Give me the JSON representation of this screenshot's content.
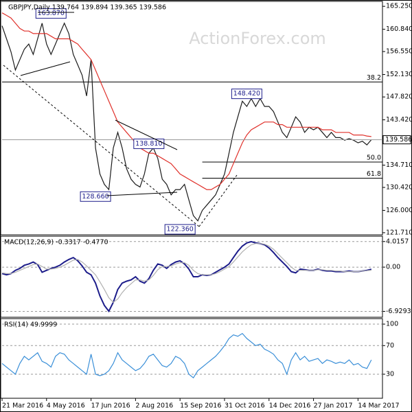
{
  "watermark": "ActionForex.com",
  "chart_data": [
    {
      "type": "line",
      "title": "GBPJPY,Daily  139.764 139.894 139.365 139.586",
      "xlim": [
        0,
        85.5
      ],
      "xticks": [
        {
          "value": 0,
          "label": "21 Mar 2016"
        },
        {
          "value": 10,
          "label": "4 May 2016"
        },
        {
          "value": 20,
          "label": "17 Jun 2016"
        },
        {
          "value": 30,
          "label": "2 Aug 2016"
        },
        {
          "value": 40,
          "label": "15 Sep 2016"
        },
        {
          "value": 50,
          "label": "31 Oct 2016"
        },
        {
          "value": 60,
          "label": "14 Dec 2016"
        },
        {
          "value": 70,
          "label": "27 Jan 2017"
        },
        {
          "value": 80,
          "label": "14 Mar 2017"
        }
      ],
      "ylim": [
        121.3,
        166.2
      ],
      "yticks": [
        {
          "value": 121.71,
          "label": "121.710"
        },
        {
          "value": 126,
          "label": "126.000"
        },
        {
          "value": 130.42,
          "label": "130.420"
        },
        {
          "value": 134.71,
          "label": "134.710"
        },
        {
          "value": 143.42,
          "label": "143.420"
        },
        {
          "value": 147.82,
          "label": "147.820"
        },
        {
          "value": 152.13,
          "label": "152.130"
        },
        {
          "value": 156.55,
          "label": "156.550"
        },
        {
          "value": 160.84,
          "label": "160.840"
        },
        {
          "value": 165.25,
          "label": "165.250"
        }
      ],
      "series": [
        {
          "name": "GBPJPY",
          "color": "#1a1a1a",
          "values": [
            161.5,
            159,
            156.5,
            153,
            155,
            157,
            158,
            156,
            159,
            162,
            158,
            156,
            158,
            160,
            162,
            160,
            156,
            154,
            152,
            148,
            155,
            138,
            133,
            131,
            130,
            138,
            141,
            138,
            134,
            132,
            131,
            130.5,
            133,
            137,
            138,
            136,
            132,
            131,
            129,
            130,
            130,
            131,
            128,
            125,
            124,
            126,
            127,
            128,
            129,
            131,
            133,
            137,
            141,
            144,
            147,
            146,
            147.5,
            146,
            147.5,
            146,
            146,
            145,
            143,
            141,
            140,
            142,
            144,
            143,
            141,
            142,
            141.5,
            142,
            141,
            140,
            141,
            140,
            140,
            139.5,
            139.8,
            139.5,
            139,
            139.3,
            138.6,
            139.586
          ]
        },
        {
          "name": "MA",
          "color": "#e0302a",
          "values": [
            164,
            163.5,
            163,
            162,
            161,
            160.5,
            160.5,
            160,
            160,
            160,
            160,
            159.5,
            159,
            159,
            159,
            159,
            158.5,
            158,
            157,
            156,
            155,
            153,
            151,
            149,
            147,
            145,
            143,
            142,
            141,
            140,
            139,
            138,
            137.5,
            137,
            137,
            136.5,
            136,
            135.5,
            135,
            134,
            133,
            132.5,
            132,
            131.5,
            131,
            130.5,
            130,
            130,
            130.5,
            131,
            132,
            133,
            135,
            137,
            139,
            140.5,
            141.5,
            142,
            142.5,
            143,
            143,
            143,
            142.5,
            142.5,
            142,
            142,
            142,
            142,
            142,
            142,
            142,
            142,
            141.5,
            141.5,
            141.5,
            141,
            141,
            141,
            141,
            140.5,
            140.5,
            140.5,
            140.3,
            140.2
          ]
        }
      ],
      "levels": [
        {
          "value": 150.7,
          "label": "38.2"
        },
        {
          "value": 135.3,
          "label": "50.0"
        },
        {
          "value": 132.2,
          "label": "61.8"
        }
      ],
      "annotations": [
        {
          "label": "163.870",
          "value": 163.87,
          "x": 11
        },
        {
          "label": "148.420",
          "value": 148.42,
          "x": 55
        },
        {
          "label": "138.810",
          "value": 138.81,
          "x": 33
        },
        {
          "label": "128.660",
          "value": 128.66,
          "x": 21
        },
        {
          "label": "122.360",
          "value": 122.36,
          "x": 40
        }
      ]
    },
    {
      "type": "line",
      "title": "MACD(12,26,9) -0.3317 -0.4770",
      "xlim": [
        0,
        85.5
      ],
      "ylim": [
        -7.85,
        4.85
      ],
      "yticks": [
        {
          "value": 4.0157,
          "label": "4.0157"
        },
        {
          "value": 0,
          "label": "0.00"
        },
        {
          "value": -6.9293,
          "label": "-6.9293"
        }
      ],
      "series": [
        {
          "name": "MACD",
          "color": "#1c1c8a",
          "values": [
            -1,
            -1.2,
            -1,
            -0.5,
            -0.2,
            0.3,
            0.5,
            0.8,
            0.4,
            -0.8,
            -0.5,
            -0.2,
            0,
            0.3,
            0.8,
            1.2,
            1.5,
            1,
            0.2,
            -0.8,
            -1.2,
            -2.5,
            -4.5,
            -6,
            -6.9,
            -5.5,
            -3.5,
            -2.5,
            -2.2,
            -2,
            -1.5,
            -2.2,
            -2.5,
            -1.8,
            -0.5,
            0.5,
            0.3,
            -0.2,
            0.4,
            0.8,
            1,
            0.5,
            -0.3,
            -1.5,
            -1.5,
            -1.2,
            -1.3,
            -1.2,
            -0.8,
            -0.4,
            0,
            0.5,
            1.5,
            2.5,
            3.3,
            3.8,
            4.0,
            3.8,
            3.7,
            3.5,
            3,
            2.3,
            1.5,
            0.8,
            0.1,
            -0.7,
            -0.9,
            -0.3,
            -0.4,
            -0.5,
            -0.5,
            -0.3,
            -0.5,
            -0.6,
            -0.6,
            -0.7,
            -0.7,
            -0.7,
            -0.6,
            -0.7,
            -0.7,
            -0.6,
            -0.5,
            -0.33
          ]
        },
        {
          "name": "Signal",
          "color": "#b0b0b0",
          "values": [
            -0.9,
            -1,
            -1,
            -0.8,
            -0.5,
            -0.2,
            0.1,
            0.4,
            0.5,
            0.1,
            -0.3,
            -0.3,
            -0.2,
            0,
            0.3,
            0.7,
            1.1,
            1.2,
            0.8,
            0.2,
            -0.5,
            -1.2,
            -2.3,
            -3.5,
            -4.8,
            -5.5,
            -5,
            -4,
            -3.2,
            -2.6,
            -2,
            -2,
            -2.2,
            -2,
            -1.3,
            -0.4,
            0.1,
            0.1,
            0.2,
            0.5,
            0.7,
            0.7,
            0.3,
            -0.5,
            -1,
            -1.2,
            -1.2,
            -1.2,
            -1,
            -0.7,
            -0.3,
            0.1,
            0.8,
            1.6,
            2.4,
            3,
            3.5,
            3.7,
            3.7,
            3.6,
            3.3,
            2.8,
            2.1,
            1.4,
            0.7,
            0,
            -0.5,
            -0.5,
            -0.5,
            -0.5,
            -0.5,
            -0.4,
            -0.4,
            -0.5,
            -0.5,
            -0.6,
            -0.6,
            -0.7,
            -0.7,
            -0.7,
            -0.7,
            -0.6,
            -0.55,
            -0.48
          ]
        }
      ]
    },
    {
      "type": "line",
      "title": "RSI(14) 49.9999",
      "xlim": [
        0,
        85.5
      ],
      "ylim": [
        -3.6,
        107.7
      ],
      "yticks": [
        100,
        70,
        30
      ],
      "series": [
        {
          "name": "RSI",
          "color": "#3a8fd8",
          "values": [
            45,
            40,
            35,
            30,
            45,
            55,
            50,
            55,
            60,
            48,
            45,
            40,
            55,
            60,
            58,
            50,
            45,
            40,
            35,
            30,
            58,
            30,
            28,
            30,
            35,
            45,
            60,
            50,
            45,
            40,
            35,
            38,
            45,
            55,
            58,
            50,
            42,
            40,
            45,
            55,
            52,
            45,
            30,
            25,
            35,
            40,
            45,
            50,
            55,
            62,
            70,
            80,
            85,
            83,
            87,
            80,
            75,
            70,
            72,
            65,
            62,
            58,
            50,
            45,
            30,
            50,
            60,
            50,
            55,
            48,
            50,
            52,
            45,
            50,
            48,
            45,
            47,
            45,
            50,
            43,
            45,
            40,
            38,
            50
          ]
        }
      ]
    }
  ]
}
